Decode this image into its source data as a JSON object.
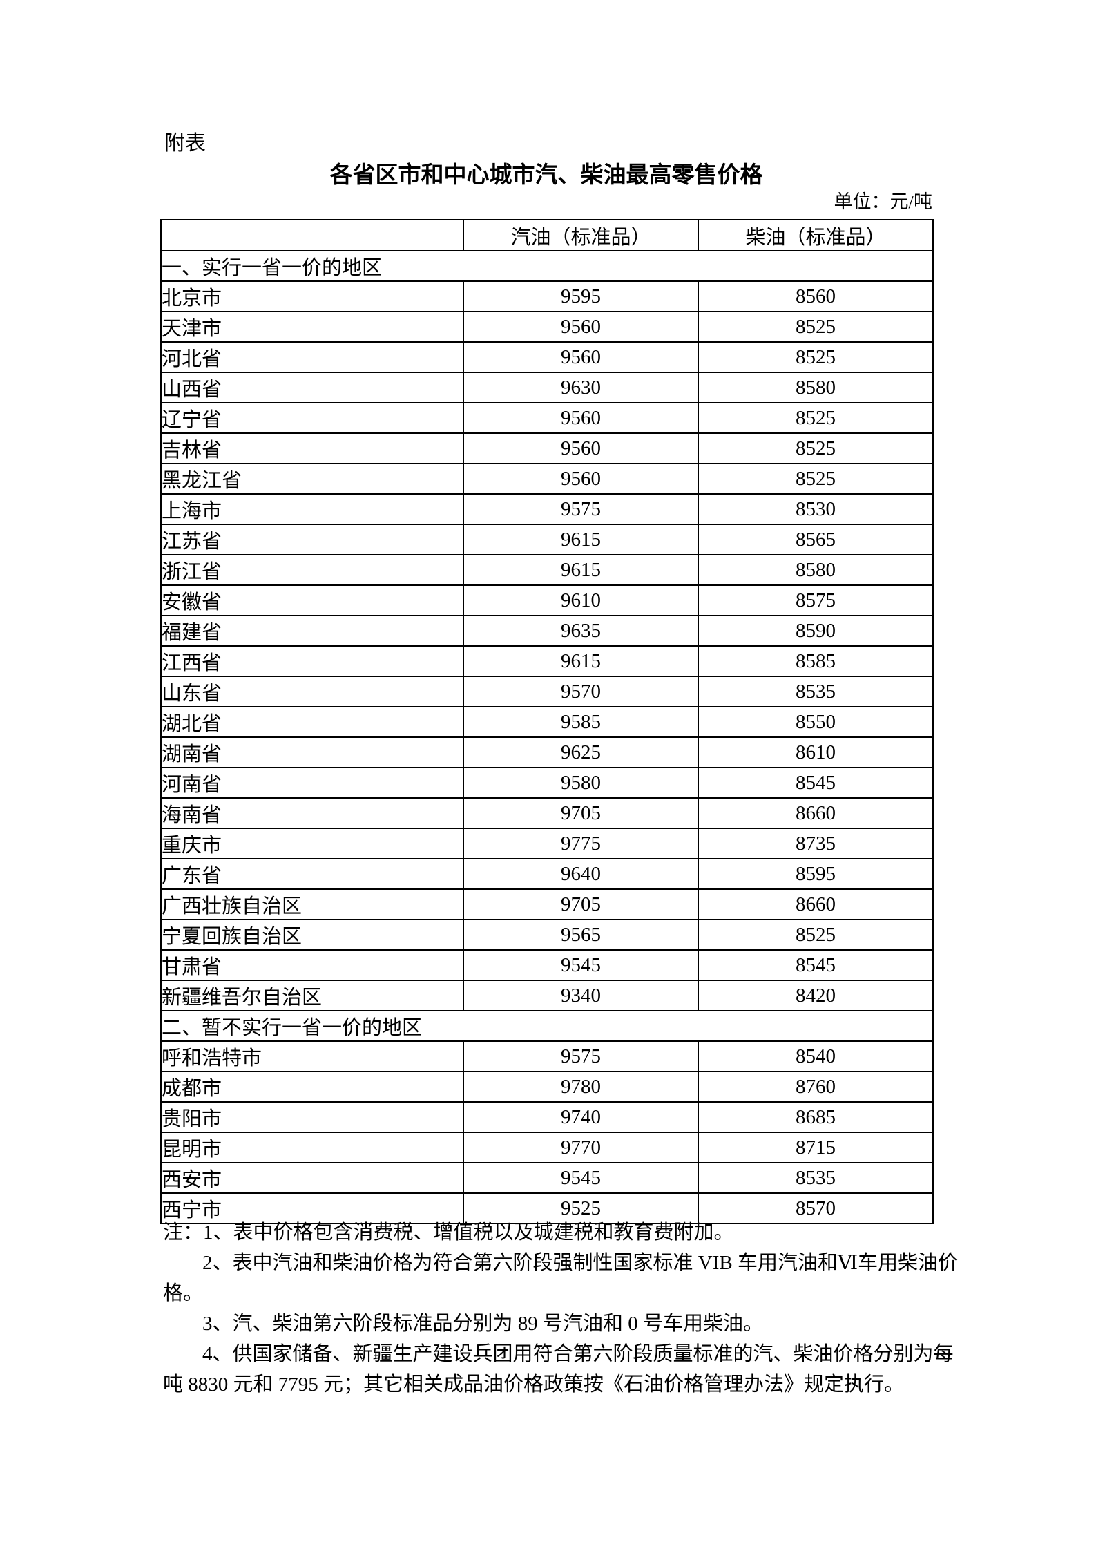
{
  "page": {
    "attachment_label": "附表",
    "title": "各省区市和中心城市汽、柴油最高零售价格",
    "unit_label": "单位：元/吨"
  },
  "table": {
    "columns": [
      "",
      "汽油（标准品）",
      "柴油（标准品）"
    ],
    "sections": [
      {
        "header": "一、实行一省一价的地区",
        "rows": [
          [
            "北京市",
            "9595",
            "8560"
          ],
          [
            "天津市",
            "9560",
            "8525"
          ],
          [
            "河北省",
            "9560",
            "8525"
          ],
          [
            "山西省",
            "9630",
            "8580"
          ],
          [
            "辽宁省",
            "9560",
            "8525"
          ],
          [
            "吉林省",
            "9560",
            "8525"
          ],
          [
            "黑龙江省",
            "9560",
            "8525"
          ],
          [
            "上海市",
            "9575",
            "8530"
          ],
          [
            "江苏省",
            "9615",
            "8565"
          ],
          [
            "浙江省",
            "9615",
            "8580"
          ],
          [
            "安徽省",
            "9610",
            "8575"
          ],
          [
            "福建省",
            "9635",
            "8590"
          ],
          [
            "江西省",
            "9615",
            "8585"
          ],
          [
            "山东省",
            "9570",
            "8535"
          ],
          [
            "湖北省",
            "9585",
            "8550"
          ],
          [
            "湖南省",
            "9625",
            "8610"
          ],
          [
            "河南省",
            "9580",
            "8545"
          ],
          [
            "海南省",
            "9705",
            "8660"
          ],
          [
            "重庆市",
            "9775",
            "8735"
          ],
          [
            "广东省",
            "9640",
            "8595"
          ],
          [
            "广西壮族自治区",
            "9705",
            "8660"
          ],
          [
            "宁夏回族自治区",
            "9565",
            "8525"
          ],
          [
            "甘肃省",
            "9545",
            "8545"
          ],
          [
            "新疆维吾尔自治区",
            "9340",
            "8420"
          ]
        ]
      },
      {
        "header": "二、暂不实行一省一价的地区",
        "rows": [
          [
            "呼和浩特市",
            "9575",
            "8540"
          ],
          [
            "成都市",
            "9780",
            "8760"
          ],
          [
            "贵阳市",
            "9740",
            "8685"
          ],
          [
            "昆明市",
            "9770",
            "8715"
          ],
          [
            "西安市",
            "9545",
            "8535"
          ],
          [
            "西宁市",
            "9525",
            "8570"
          ]
        ]
      }
    ]
  },
  "notes": {
    "lines": [
      {
        "text": "注：1、表中价格包含消费税、增值税以及城建税和教育费附加。",
        "indent": false
      },
      {
        "text": "2、表中汽油和柴油价格为符合第六阶段强制性国家标准 VIB 车用汽油和Ⅵ车用柴油价",
        "indent": true
      },
      {
        "text": "格。",
        "indent": false
      },
      {
        "text": "3、汽、柴油第六阶段标准品分别为 89 号汽油和 0 号车用柴油。",
        "indent": true
      },
      {
        "text": "4、供国家储备、新疆生产建设兵团用符合第六阶段质量标准的汽、柴油价格分别为每",
        "indent": true
      },
      {
        "text": "吨 8830 元和 7795 元；其它相关成品油价格政策按《石油价格管理办法》规定执行。",
        "indent": false
      }
    ]
  }
}
